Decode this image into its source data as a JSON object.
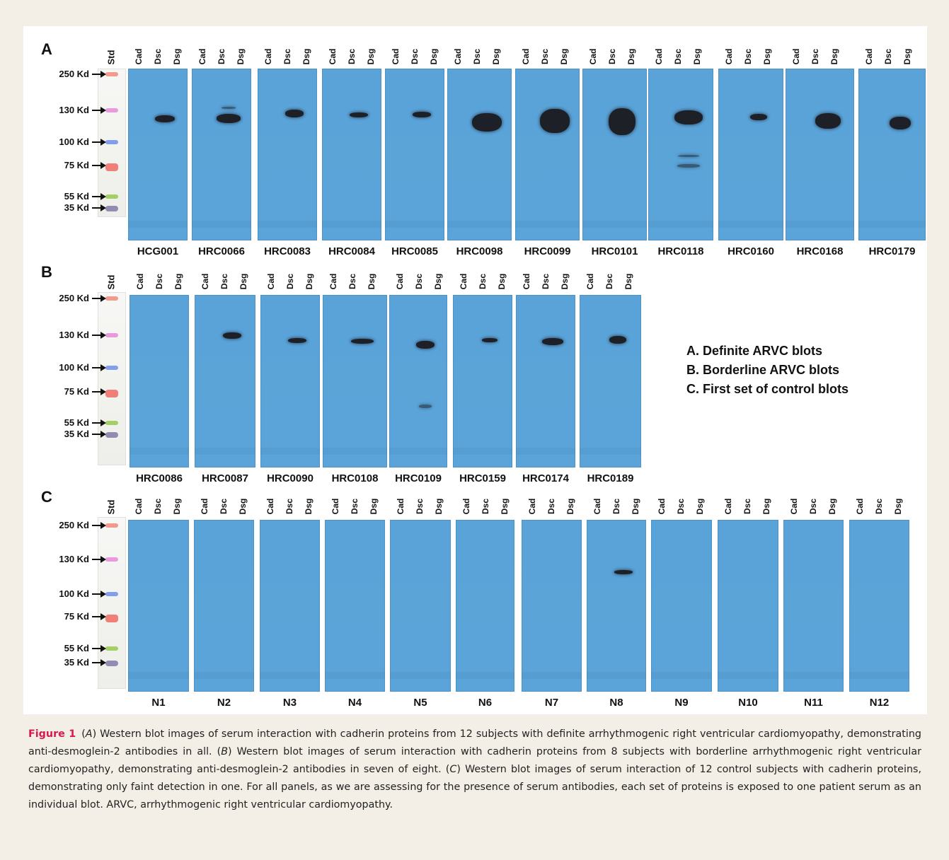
{
  "panels": [
    {
      "letter": "A",
      "std": "Std",
      "lanes": [
        "Cad",
        "Dsc",
        "Dsg"
      ],
      "markers": [
        "250 Kd",
        "130 Kd",
        "100 Kd",
        "75 Kd",
        "55 Kd",
        "35 Kd"
      ],
      "samples": [
        "HCG001",
        "HRC0066",
        "HRC0083",
        "HRC0084",
        "HRC0085",
        "HRC0098",
        "HRC0099",
        "HRC0101",
        "HRC0118",
        "HRC0160",
        "HRC0168",
        "HRC0179"
      ]
    },
    {
      "letter": "B",
      "std": "Std",
      "lanes": [
        "Cad",
        "Dsc",
        "Dsg"
      ],
      "markers": [
        "250 Kd",
        "130 Kd",
        "100 Kd",
        "75 Kd",
        "55 Kd",
        "35 Kd"
      ],
      "samples": [
        "HRC0086",
        "HRC0087",
        "HRC0090",
        "HRC0108",
        "HRC0109",
        "HRC0159",
        "HRC0174",
        "HRC0189"
      ]
    },
    {
      "letter": "C",
      "std": "Std",
      "lanes": [
        "Cad",
        "Dsc",
        "Dsg"
      ],
      "markers": [
        "250 Kd",
        "130 Kd",
        "100 Kd",
        "75 Kd",
        "55 Kd",
        "35 Kd"
      ],
      "samples": [
        "N1",
        "N2",
        "N3",
        "N4",
        "N5",
        "N6",
        "N7",
        "N8",
        "N9",
        "N10",
        "N11",
        "N12"
      ]
    }
  ],
  "legend": [
    "A. Definite ARVC blots",
    "B. Borderline ARVC blots",
    "C. First set of control blots"
  ],
  "caption": {
    "label": "Figure 1",
    "segments": [
      {
        "t": "(",
        "i": false
      },
      {
        "t": "A",
        "i": true
      },
      {
        "t": ") Western blot images of serum interaction with cadherin proteins from 12 subjects with definite arrhythmogenic right ventricular cardiomyopathy, demonstrating anti-desmoglein-2 antibodies in all. (",
        "i": false
      },
      {
        "t": "B",
        "i": true
      },
      {
        "t": ") Western blot images of serum interaction with cadherin proteins from 8 subjects with borderline arrhythmogenic right ventricular cardiomyopathy, demonstrating anti-desmoglein-2 antibodies in seven of eight. (",
        "i": false
      },
      {
        "t": "C",
        "i": true
      },
      {
        "t": ") Western blot images of serum interaction of 12 control subjects with cadherin proteins, demonstrating only faint detection in one. For all panels, as we are assessing for the presence of serum antibodies, each set of proteins is exposed to one patient serum as an individual blot. ARVC, arrhythmogenic right ventricular cardiomyopathy.",
        "i": false
      }
    ]
  },
  "colors": {
    "membrane": "#5aa3d8",
    "caption_label": "#d8194f",
    "ladder": [
      "#f08a7a",
      "#e88ad8",
      "#6f8fe8",
      "#f06b63",
      "#96c94a",
      "#7f7aa8"
    ]
  }
}
